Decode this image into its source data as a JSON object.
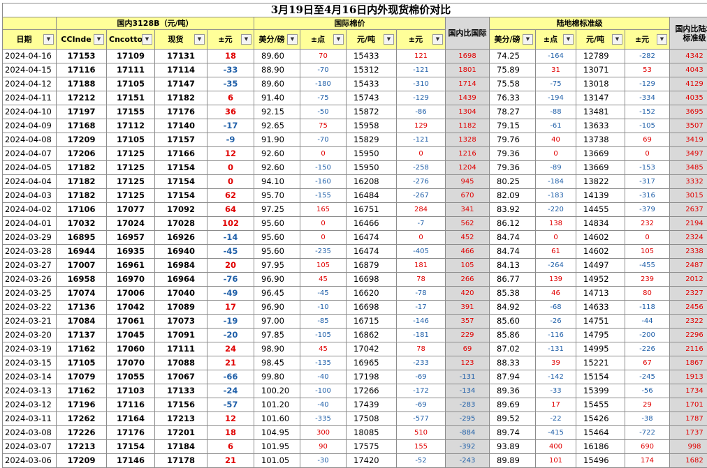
{
  "title": "3月19日至4月16日内外现货棉价对比",
  "groups": {
    "domestic": "国内3128B（元/吨）",
    "intl": "国际棉价",
    "intl_diff": "国内比国际",
    "land": "陆地棉标准级",
    "land_diff": "国内比陆地标准级"
  },
  "headers": {
    "date": "日期",
    "cc": "CCInde",
    "cn": "Cncotto",
    "spot": "现货",
    "pm": "±元",
    "usd1": "美分/磅",
    "pts1": "±点",
    "yuan1": "元/吨",
    "pm1": "±元",
    "usd2": "美分/磅",
    "pts2": "±点",
    "yuan2": "元/吨",
    "pm2": "±元"
  },
  "rows": [
    [
      "2024-04-16",
      "17153",
      "17109",
      "17131",
      "18",
      "89.60",
      "70",
      "15433",
      "121",
      "1698",
      "74.25",
      "-164",
      "12789",
      "-282",
      "4342"
    ],
    [
      "2024-04-15",
      "17116",
      "17111",
      "17114",
      "-33",
      "88.90",
      "-70",
      "15312",
      "-121",
      "1801",
      "75.89",
      "31",
      "13071",
      "53",
      "4043"
    ],
    [
      "2024-04-12",
      "17188",
      "17105",
      "17147",
      "-35",
      "89.60",
      "-180",
      "15433",
      "-310",
      "1714",
      "75.58",
      "-75",
      "13018",
      "-129",
      "4129"
    ],
    [
      "2024-04-11",
      "17212",
      "17151",
      "17182",
      "6",
      "91.40",
      "-75",
      "15743",
      "-129",
      "1439",
      "76.33",
      "-194",
      "13147",
      "-334",
      "4035"
    ],
    [
      "2024-04-10",
      "17197",
      "17155",
      "17176",
      "36",
      "92.15",
      "-50",
      "15872",
      "-86",
      "1304",
      "78.27",
      "-88",
      "13481",
      "-152",
      "3695"
    ],
    [
      "2024-04-09",
      "17168",
      "17112",
      "17140",
      "-17",
      "92.65",
      "75",
      "15958",
      "129",
      "1182",
      "79.15",
      "-61",
      "13633",
      "-105",
      "3507"
    ],
    [
      "2024-04-08",
      "17209",
      "17105",
      "17157",
      "-9",
      "91.90",
      "-70",
      "15829",
      "-121",
      "1328",
      "79.76",
      "40",
      "13738",
      "69",
      "3419"
    ],
    [
      "2024-04-07",
      "17206",
      "17125",
      "17166",
      "12",
      "92.60",
      "0",
      "15950",
      "0",
      "1216",
      "79.36",
      "0",
      "13669",
      "0",
      "3497"
    ],
    [
      "2024-04-05",
      "17182",
      "17125",
      "17154",
      "0",
      "92.60",
      "-150",
      "15950",
      "-258",
      "1204",
      "79.36",
      "-89",
      "13669",
      "-153",
      "3485"
    ],
    [
      "2024-04-04",
      "17182",
      "17125",
      "17154",
      "0",
      "94.10",
      "-160",
      "16208",
      "-276",
      "945",
      "80.25",
      "-184",
      "13822",
      "-317",
      "3332"
    ],
    [
      "2024-04-03",
      "17182",
      "17125",
      "17154",
      "62",
      "95.70",
      "-155",
      "16484",
      "-267",
      "670",
      "82.09",
      "-183",
      "14139",
      "-316",
      "3015"
    ],
    [
      "2024-04-02",
      "17106",
      "17077",
      "17092",
      "64",
      "97.25",
      "165",
      "16751",
      "284",
      "341",
      "83.92",
      "-220",
      "14455",
      "-379",
      "2637"
    ],
    [
      "2024-04-01",
      "17032",
      "17024",
      "17028",
      "102",
      "95.60",
      "0",
      "16466",
      "-7",
      "562",
      "86.12",
      "138",
      "14834",
      "232",
      "2194"
    ],
    [
      "2024-03-29",
      "16895",
      "16957",
      "16926",
      "-14",
      "95.60",
      "0",
      "16474",
      "0",
      "452",
      "84.74",
      "0",
      "14602",
      "0",
      "2324"
    ],
    [
      "2024-03-28",
      "16944",
      "16935",
      "16940",
      "-45",
      "95.60",
      "-235",
      "16474",
      "-405",
      "466",
      "84.74",
      "61",
      "14602",
      "105",
      "2338"
    ],
    [
      "2024-03-27",
      "17007",
      "16961",
      "16984",
      "20",
      "97.95",
      "105",
      "16879",
      "181",
      "105",
      "84.13",
      "-264",
      "14497",
      "-455",
      "2487"
    ],
    [
      "2024-03-26",
      "16958",
      "16970",
      "16964",
      "-76",
      "96.90",
      "45",
      "16698",
      "78",
      "266",
      "86.77",
      "139",
      "14952",
      "239",
      "2012"
    ],
    [
      "2024-03-25",
      "17074",
      "17006",
      "17040",
      "-49",
      "96.45",
      "-45",
      "16620",
      "-78",
      "420",
      "85.38",
      "46",
      "14713",
      "80",
      "2327"
    ],
    [
      "2024-03-22",
      "17136",
      "17042",
      "17089",
      "17",
      "96.90",
      "-10",
      "16698",
      "-17",
      "391",
      "84.92",
      "-68",
      "14633",
      "-118",
      "2456"
    ],
    [
      "2024-03-21",
      "17084",
      "17061",
      "17073",
      "-19",
      "97.00",
      "-85",
      "16715",
      "-146",
      "357",
      "85.60",
      "-26",
      "14751",
      "-44",
      "2322"
    ],
    [
      "2024-03-20",
      "17137",
      "17045",
      "17091",
      "-20",
      "97.85",
      "-105",
      "16862",
      "-181",
      "229",
      "85.86",
      "-116",
      "14795",
      "-200",
      "2296"
    ],
    [
      "2024-03-19",
      "17162",
      "17060",
      "17111",
      "24",
      "98.90",
      "45",
      "17042",
      "78",
      "69",
      "87.02",
      "-131",
      "14995",
      "-226",
      "2116"
    ],
    [
      "2024-03-15",
      "17105",
      "17070",
      "17088",
      "21",
      "98.45",
      "-135",
      "16965",
      "-233",
      "123",
      "88.33",
      "39",
      "15221",
      "67",
      "1867"
    ],
    [
      "2024-03-14",
      "17079",
      "17055",
      "17067",
      "-66",
      "99.80",
      "-40",
      "17198",
      "-69",
      "-131",
      "87.94",
      "-142",
      "15154",
      "-245",
      "1913"
    ],
    [
      "2024-03-13",
      "17162",
      "17103",
      "17133",
      "-24",
      "100.20",
      "-100",
      "17266",
      "-172",
      "-134",
      "89.36",
      "-33",
      "15399",
      "-56",
      "1734"
    ],
    [
      "2024-03-12",
      "17196",
      "17116",
      "17156",
      "-57",
      "101.20",
      "-40",
      "17439",
      "-69",
      "-283",
      "89.69",
      "17",
      "15455",
      "29",
      "1701"
    ],
    [
      "2024-03-11",
      "17262",
      "17164",
      "17213",
      "12",
      "101.60",
      "-335",
      "17508",
      "-577",
      "-295",
      "89.52",
      "-22",
      "15426",
      "-38",
      "1787"
    ],
    [
      "2024-03-08",
      "17226",
      "17176",
      "17201",
      "18",
      "104.95",
      "300",
      "18085",
      "510",
      "-884",
      "89.74",
      "-415",
      "15464",
      "-722",
      "1737"
    ],
    [
      "2024-03-07",
      "17213",
      "17154",
      "17184",
      "6",
      "101.95",
      "90",
      "17575",
      "155",
      "-392",
      "93.89",
      "400",
      "16186",
      "690",
      "998"
    ],
    [
      "2024-03-06",
      "17209",
      "17146",
      "17178",
      "21",
      "101.05",
      "-30",
      "17420",
      "-52",
      "-243",
      "89.89",
      "101",
      "15496",
      "174",
      "1682"
    ]
  ],
  "icons": {
    "filter": "filter-dropdown-icon"
  },
  "colors": {
    "header_bg": "#ffff99",
    "diff_bg": "#d9d9d9",
    "positive": "#e00000",
    "negative": "#1f5fa8"
  }
}
